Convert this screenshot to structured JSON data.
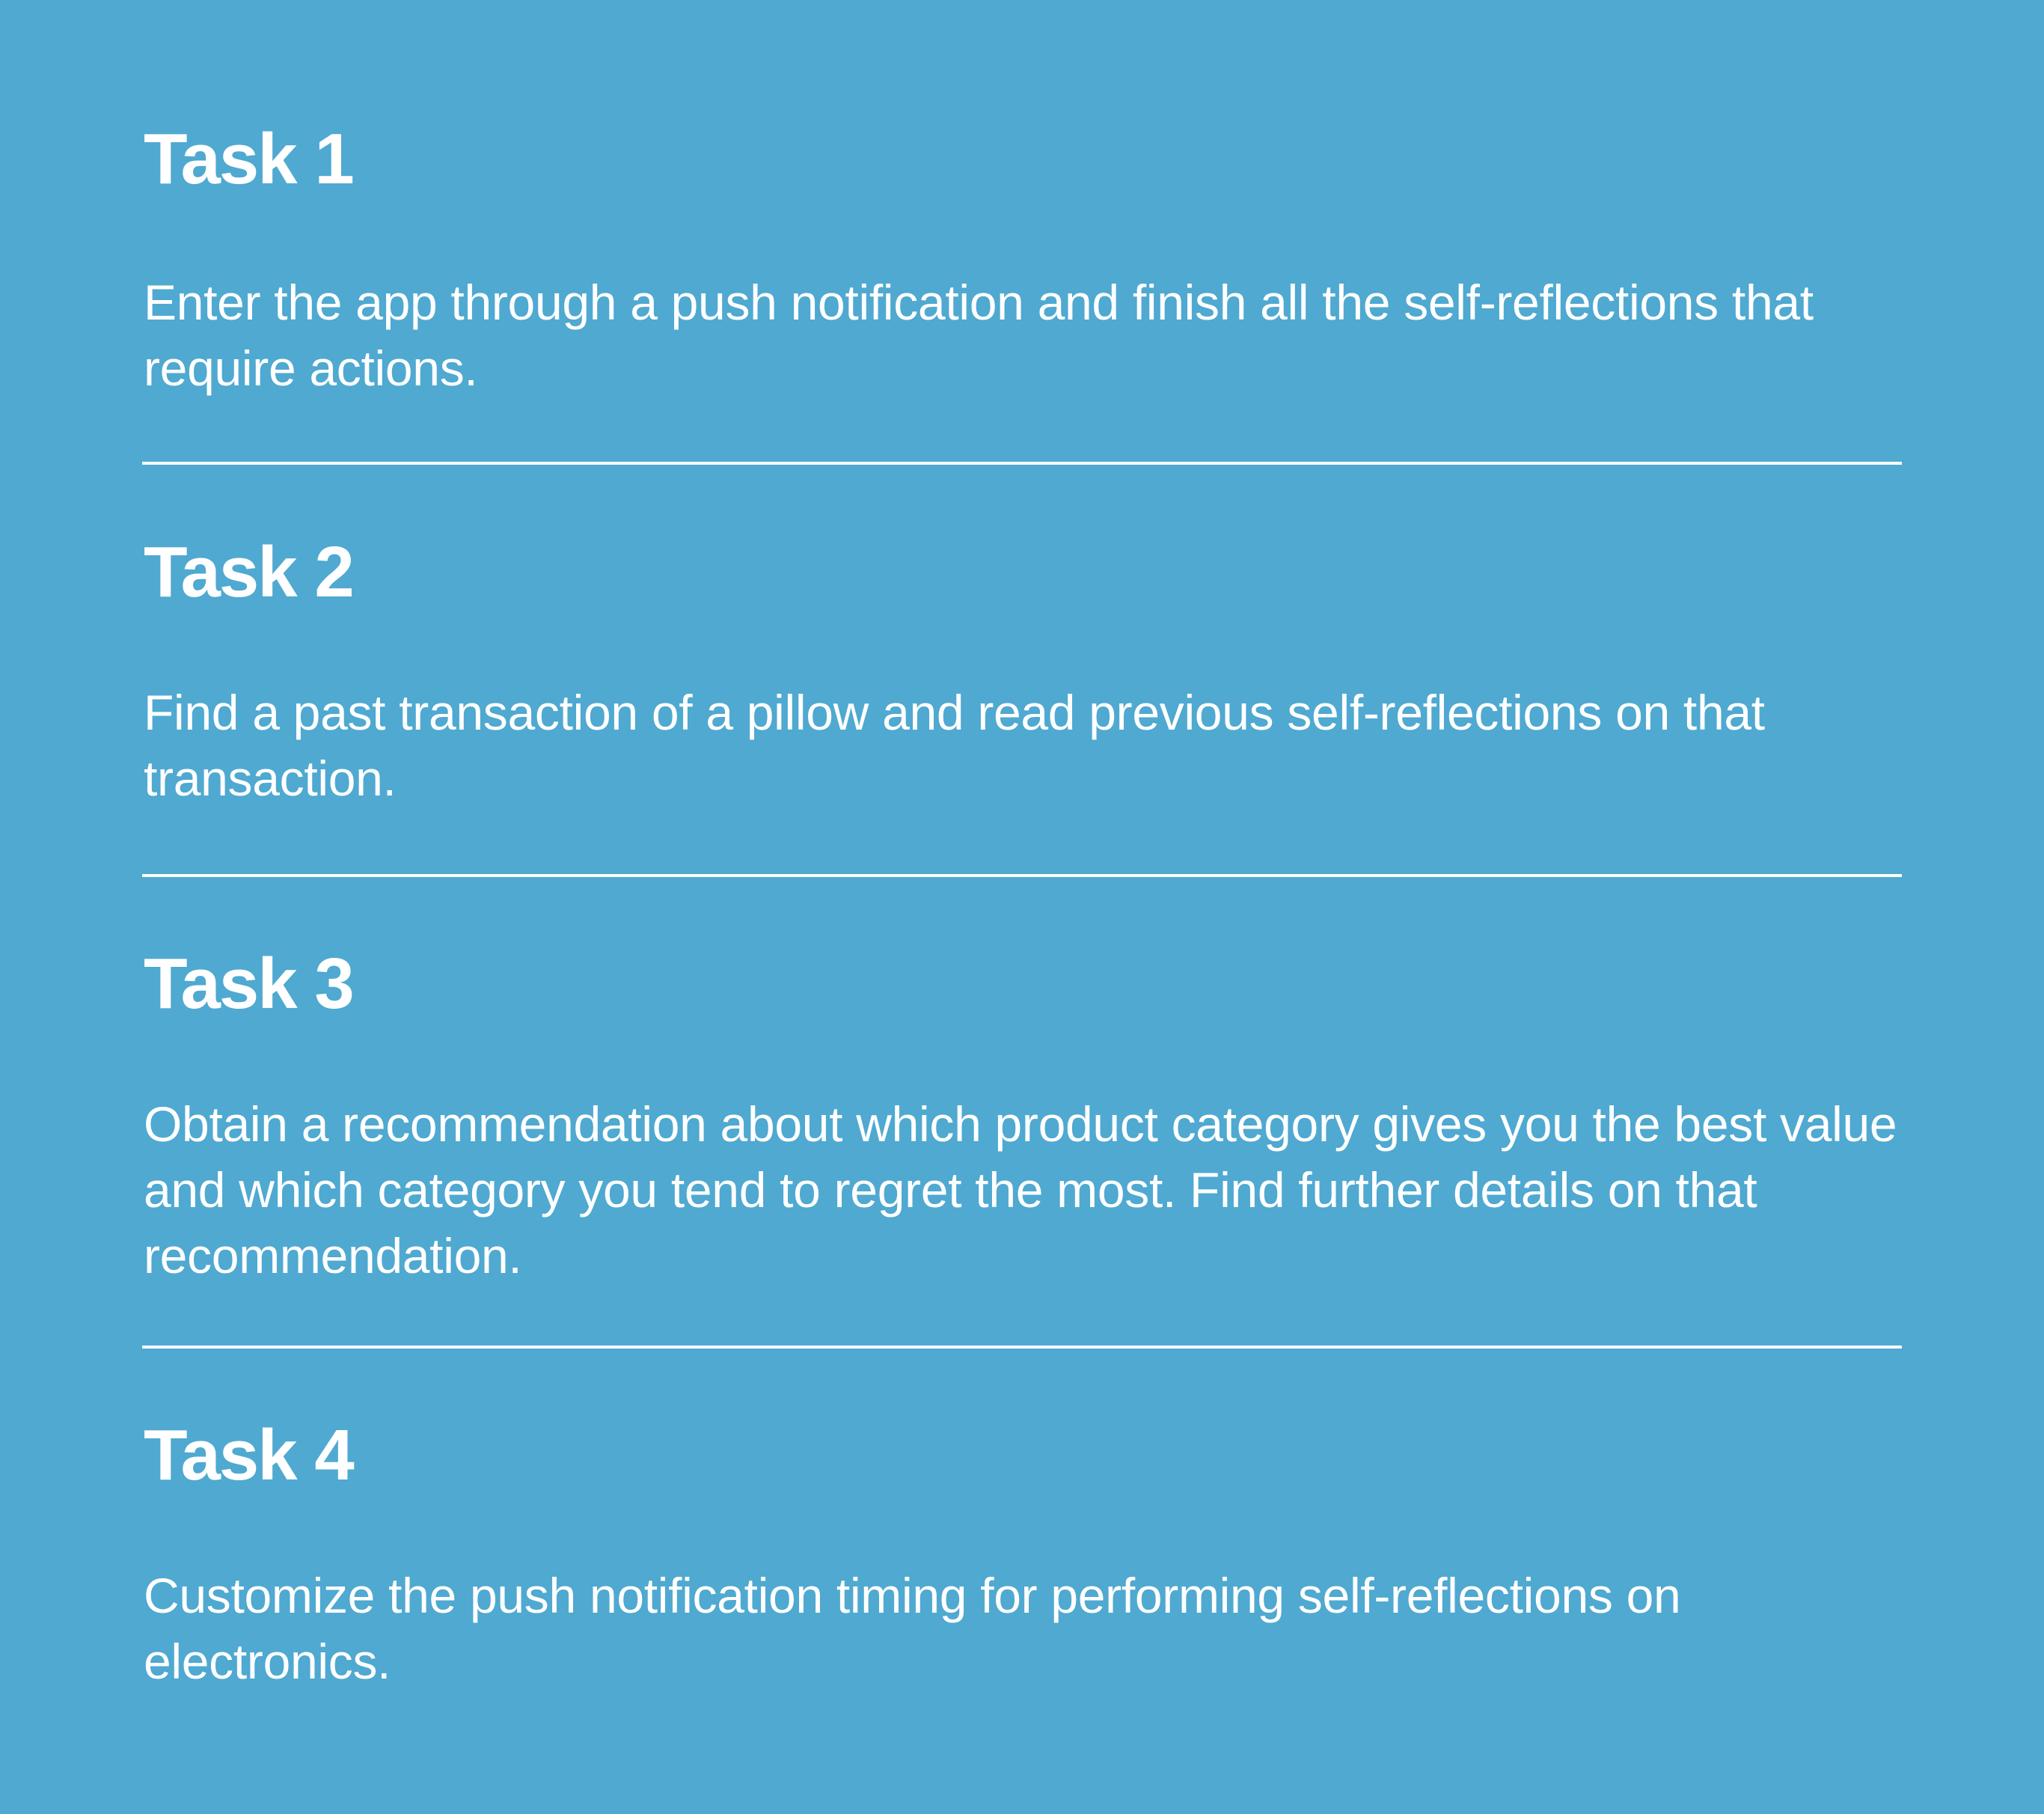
{
  "colors": {
    "background": "#4fa9d1",
    "text": "#ffffff",
    "divider": "#ffffff"
  },
  "tasks": [
    {
      "title": "Task 1",
      "description": "Enter the app through a push notification and finish all the self-reflections that require actions."
    },
    {
      "title": "Task 2",
      "description": "Find a past transaction of a pillow and read previous self-reflections on that transaction."
    },
    {
      "title": "Task 3",
      "description": "Obtain a recommendation about which product category gives you the best value and which category you tend to regret the most. Find further details on that recommendation."
    },
    {
      "title": "Task 4",
      "description": "Customize the push notification timing for performing self-reflections on electronics."
    }
  ]
}
